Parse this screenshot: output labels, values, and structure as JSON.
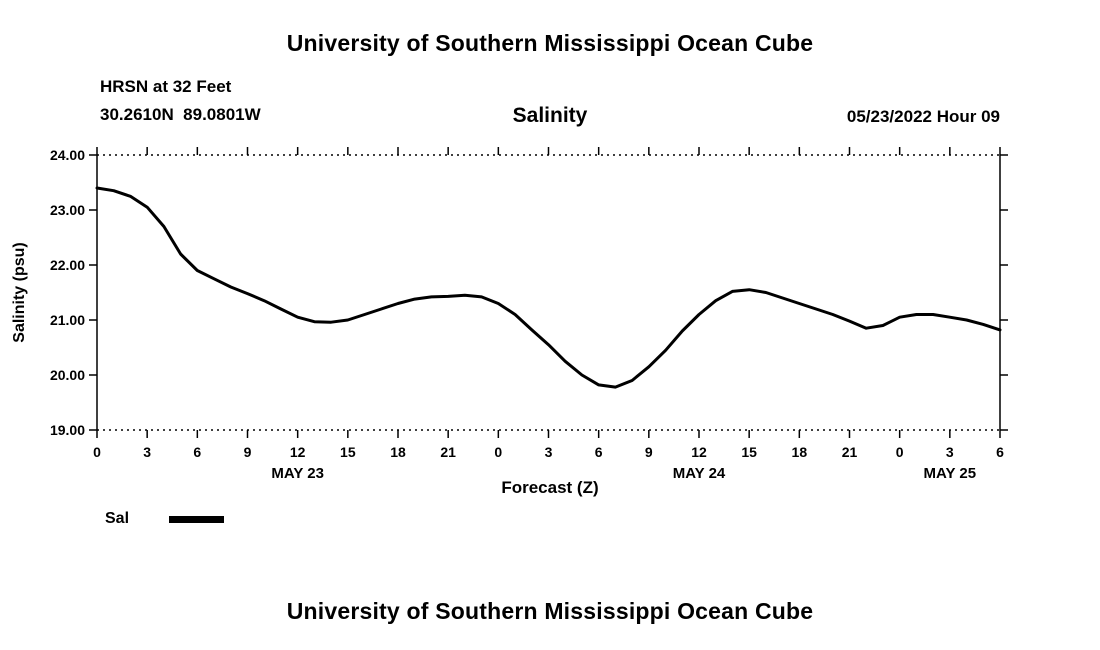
{
  "page": {
    "top_title": "University of Southern Mississippi Ocean Cube",
    "bottom_title": "University of Southern Mississippi Ocean Cube"
  },
  "header": {
    "station": "HRSN at 32 Feet",
    "coords": "30.2610N  89.0801W",
    "chart_title": "Salinity",
    "run_time": "05/23/2022 Hour 09"
  },
  "chart_data": {
    "type": "line",
    "title": "Salinity",
    "xlabel": "Forecast (Z)",
    "ylabel": "Salinity (psu)",
    "ylim": [
      19.0,
      24.0
    ],
    "ytick_step": 1.0,
    "ytick_labels": [
      "19.00",
      "20.00",
      "21.00",
      "22.00",
      "23.00",
      "24.00"
    ],
    "xlim": [
      0,
      54
    ],
    "xtick_step": 3,
    "xtick_labels": [
      "0",
      "3",
      "6",
      "9",
      "12",
      "15",
      "18",
      "21",
      "0",
      "3",
      "6",
      "9",
      "12",
      "15",
      "18",
      "21",
      "0",
      "3",
      "6"
    ],
    "date_labels": [
      {
        "label": "MAY 23",
        "hour": 12
      },
      {
        "label": "MAY 24",
        "hour": 36
      },
      {
        "label": "MAY 25",
        "hour": 51
      }
    ],
    "grid": "frame-only-dotted-top-bottom",
    "legend_position": "below-left",
    "legend": [
      {
        "name": "Sal",
        "color": "#000000"
      }
    ],
    "series": [
      {
        "name": "Sal",
        "color": "#000000",
        "x": [
          0,
          1,
          2,
          3,
          4,
          5,
          6,
          7,
          8,
          9,
          10,
          11,
          12,
          13,
          14,
          15,
          16,
          17,
          18,
          19,
          20,
          21,
          22,
          23,
          24,
          25,
          26,
          27,
          28,
          29,
          30,
          31,
          32,
          33,
          34,
          35,
          36,
          37,
          38,
          39,
          40,
          41,
          42,
          43,
          44,
          45,
          46,
          47,
          48,
          49,
          50,
          51,
          52,
          53,
          54
        ],
        "y": [
          23.4,
          23.35,
          23.25,
          23.05,
          22.7,
          22.2,
          21.9,
          21.75,
          21.6,
          21.48,
          21.35,
          21.2,
          21.05,
          20.97,
          20.96,
          21.0,
          21.1,
          21.2,
          21.3,
          21.38,
          21.42,
          21.43,
          21.45,
          21.42,
          21.3,
          21.1,
          20.82,
          20.55,
          20.25,
          20.0,
          19.82,
          19.78,
          19.9,
          20.15,
          20.45,
          20.8,
          21.1,
          21.35,
          21.52,
          21.55,
          21.5,
          21.4,
          21.3,
          21.2,
          21.1,
          20.98,
          20.85,
          20.9,
          21.05,
          21.1,
          21.1,
          21.05,
          21.0,
          20.92,
          20.82
        ]
      }
    ]
  }
}
